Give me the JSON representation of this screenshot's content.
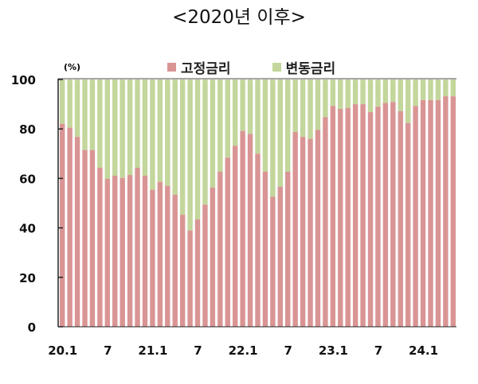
{
  "title": "<2020년 이후>",
  "colors": {
    "fixed": "#d99594",
    "variable": "#c3d69b"
  },
  "chart_data": {
    "type": "bar",
    "stacked": true,
    "title": "<2020년 이후>",
    "ylabel": "(%)",
    "ylim": [
      0,
      100
    ],
    "yticks": [
      0,
      20,
      40,
      60,
      80,
      100
    ],
    "legend_position": "top",
    "grid": false,
    "x_tick_labels": [
      {
        "index": 0,
        "label": "20.1"
      },
      {
        "index": 6,
        "label": "7"
      },
      {
        "index": 12,
        "label": "21.1"
      },
      {
        "index": 18,
        "label": "7"
      },
      {
        "index": 24,
        "label": "22.1"
      },
      {
        "index": 30,
        "label": "7"
      },
      {
        "index": 36,
        "label": "23.1"
      },
      {
        "index": 42,
        "label": "7"
      },
      {
        "index": 48,
        "label": "24.1"
      }
    ],
    "categories": [
      "20.1",
      "20.2",
      "20.3",
      "20.4",
      "20.5",
      "20.6",
      "20.7",
      "20.8",
      "20.9",
      "20.10",
      "20.11",
      "20.12",
      "21.1",
      "21.2",
      "21.3",
      "21.4",
      "21.5",
      "21.6",
      "21.7",
      "21.8",
      "21.9",
      "21.10",
      "21.11",
      "21.12",
      "22.1",
      "22.2",
      "22.3",
      "22.4",
      "22.5",
      "22.6",
      "22.7",
      "22.8",
      "22.9",
      "22.10",
      "22.11",
      "22.12",
      "23.1",
      "23.2",
      "23.3",
      "23.4",
      "23.5",
      "23.6",
      "23.7",
      "23.8",
      "23.9",
      "23.10",
      "23.11",
      "23.12",
      "24.1",
      "24.2",
      "24.3",
      "24.4",
      "24.5"
    ],
    "series": [
      {
        "name": "고정금리",
        "values": [
          82.1,
          80.5,
          76.8,
          71.5,
          71.5,
          64.3,
          59.8,
          61.1,
          60.2,
          61.4,
          64.3,
          61.1,
          55.4,
          58.6,
          57.0,
          53.4,
          45.3,
          38.9,
          43.4,
          49.4,
          56.3,
          62.7,
          68.4,
          73.2,
          79.2,
          78.0,
          70.0,
          62.7,
          52.6,
          56.6,
          62.7,
          78.8,
          76.8,
          76.0,
          79.6,
          84.8,
          89.3,
          88.1,
          88.5,
          90.0,
          90.0,
          86.8,
          89.0,
          90.5,
          90.9,
          87.2,
          82.4,
          89.3,
          91.7,
          91.7,
          91.7,
          93.2,
          93.2
        ]
      },
      {
        "name": "변동금리",
        "values": "remainder to 100"
      }
    ]
  }
}
